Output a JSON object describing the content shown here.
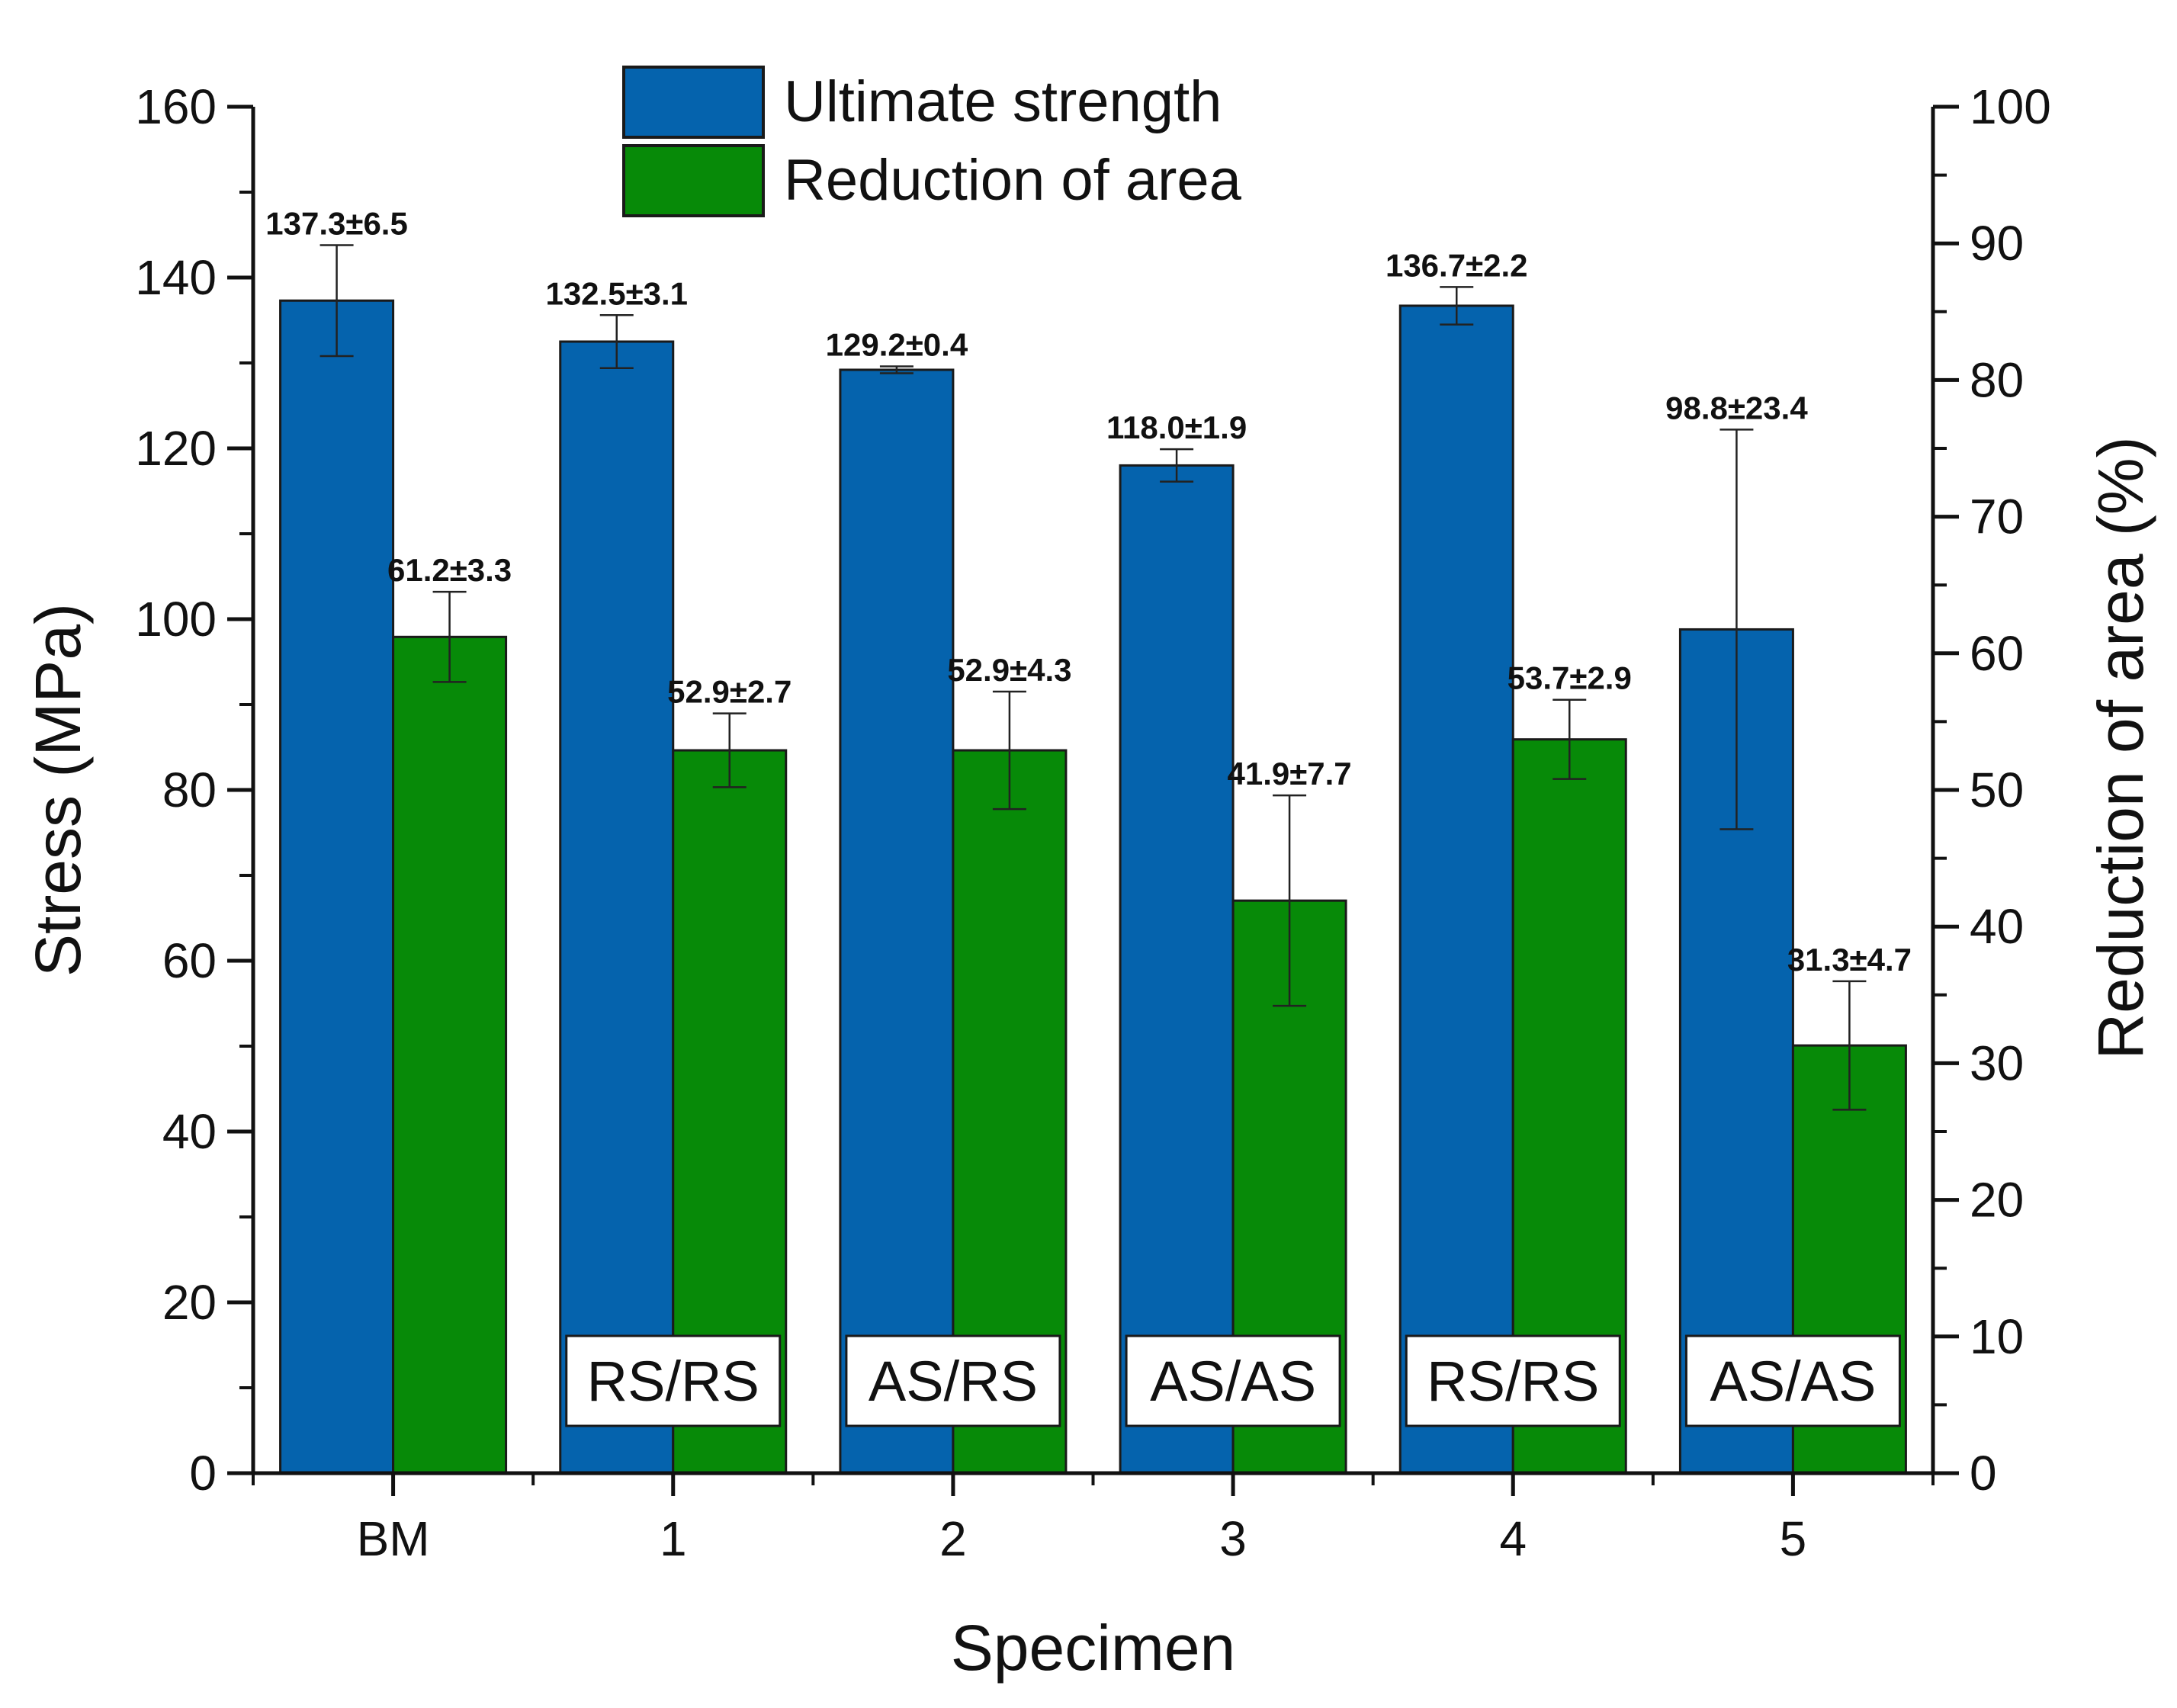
{
  "chart_data": {
    "type": "bar",
    "title": "",
    "xlabel": "Specimen",
    "ylabel": "Stress (MPa)",
    "y2label": "Reduction of area (%)",
    "categories": [
      "BM",
      "1",
      "2",
      "3",
      "4",
      "5"
    ],
    "ylim": [
      0,
      160
    ],
    "y2lim": [
      0,
      100
    ],
    "yticks": [
      0,
      20,
      40,
      60,
      80,
      100,
      120,
      140,
      160
    ],
    "y2ticks": [
      0,
      10,
      20,
      30,
      40,
      50,
      60,
      70,
      80,
      90,
      100
    ],
    "legend_position": "top-center",
    "series": [
      {
        "name": "Ultimate strength",
        "axis": "left",
        "color": "#0563ad",
        "values": [
          137.3,
          132.5,
          129.2,
          118.0,
          136.7,
          98.8
        ],
        "errors": [
          6.5,
          3.1,
          0.4,
          1.9,
          2.2,
          23.4
        ],
        "labels": [
          "137.3±6.5",
          "132.5±3.1",
          "129.2±0.4",
          "118.0±1.9",
          "136.7±2.2",
          "98.8±23.4"
        ]
      },
      {
        "name": "Reduction of area",
        "axis": "right",
        "color": "#078a08",
        "values": [
          61.2,
          52.9,
          52.9,
          41.9,
          53.7,
          31.3
        ],
        "errors": [
          3.3,
          2.7,
          4.3,
          7.7,
          2.9,
          4.7
        ],
        "labels": [
          "61.2±3.3",
          "52.9±2.7",
          "52.9±4.3",
          "41.9±7.7",
          "53.7±2.9",
          "31.3±4.7"
        ]
      }
    ],
    "annotations": [
      "",
      "RS/RS",
      "AS/RS",
      "AS/AS",
      "RS/RS",
      "AS/AS"
    ]
  }
}
